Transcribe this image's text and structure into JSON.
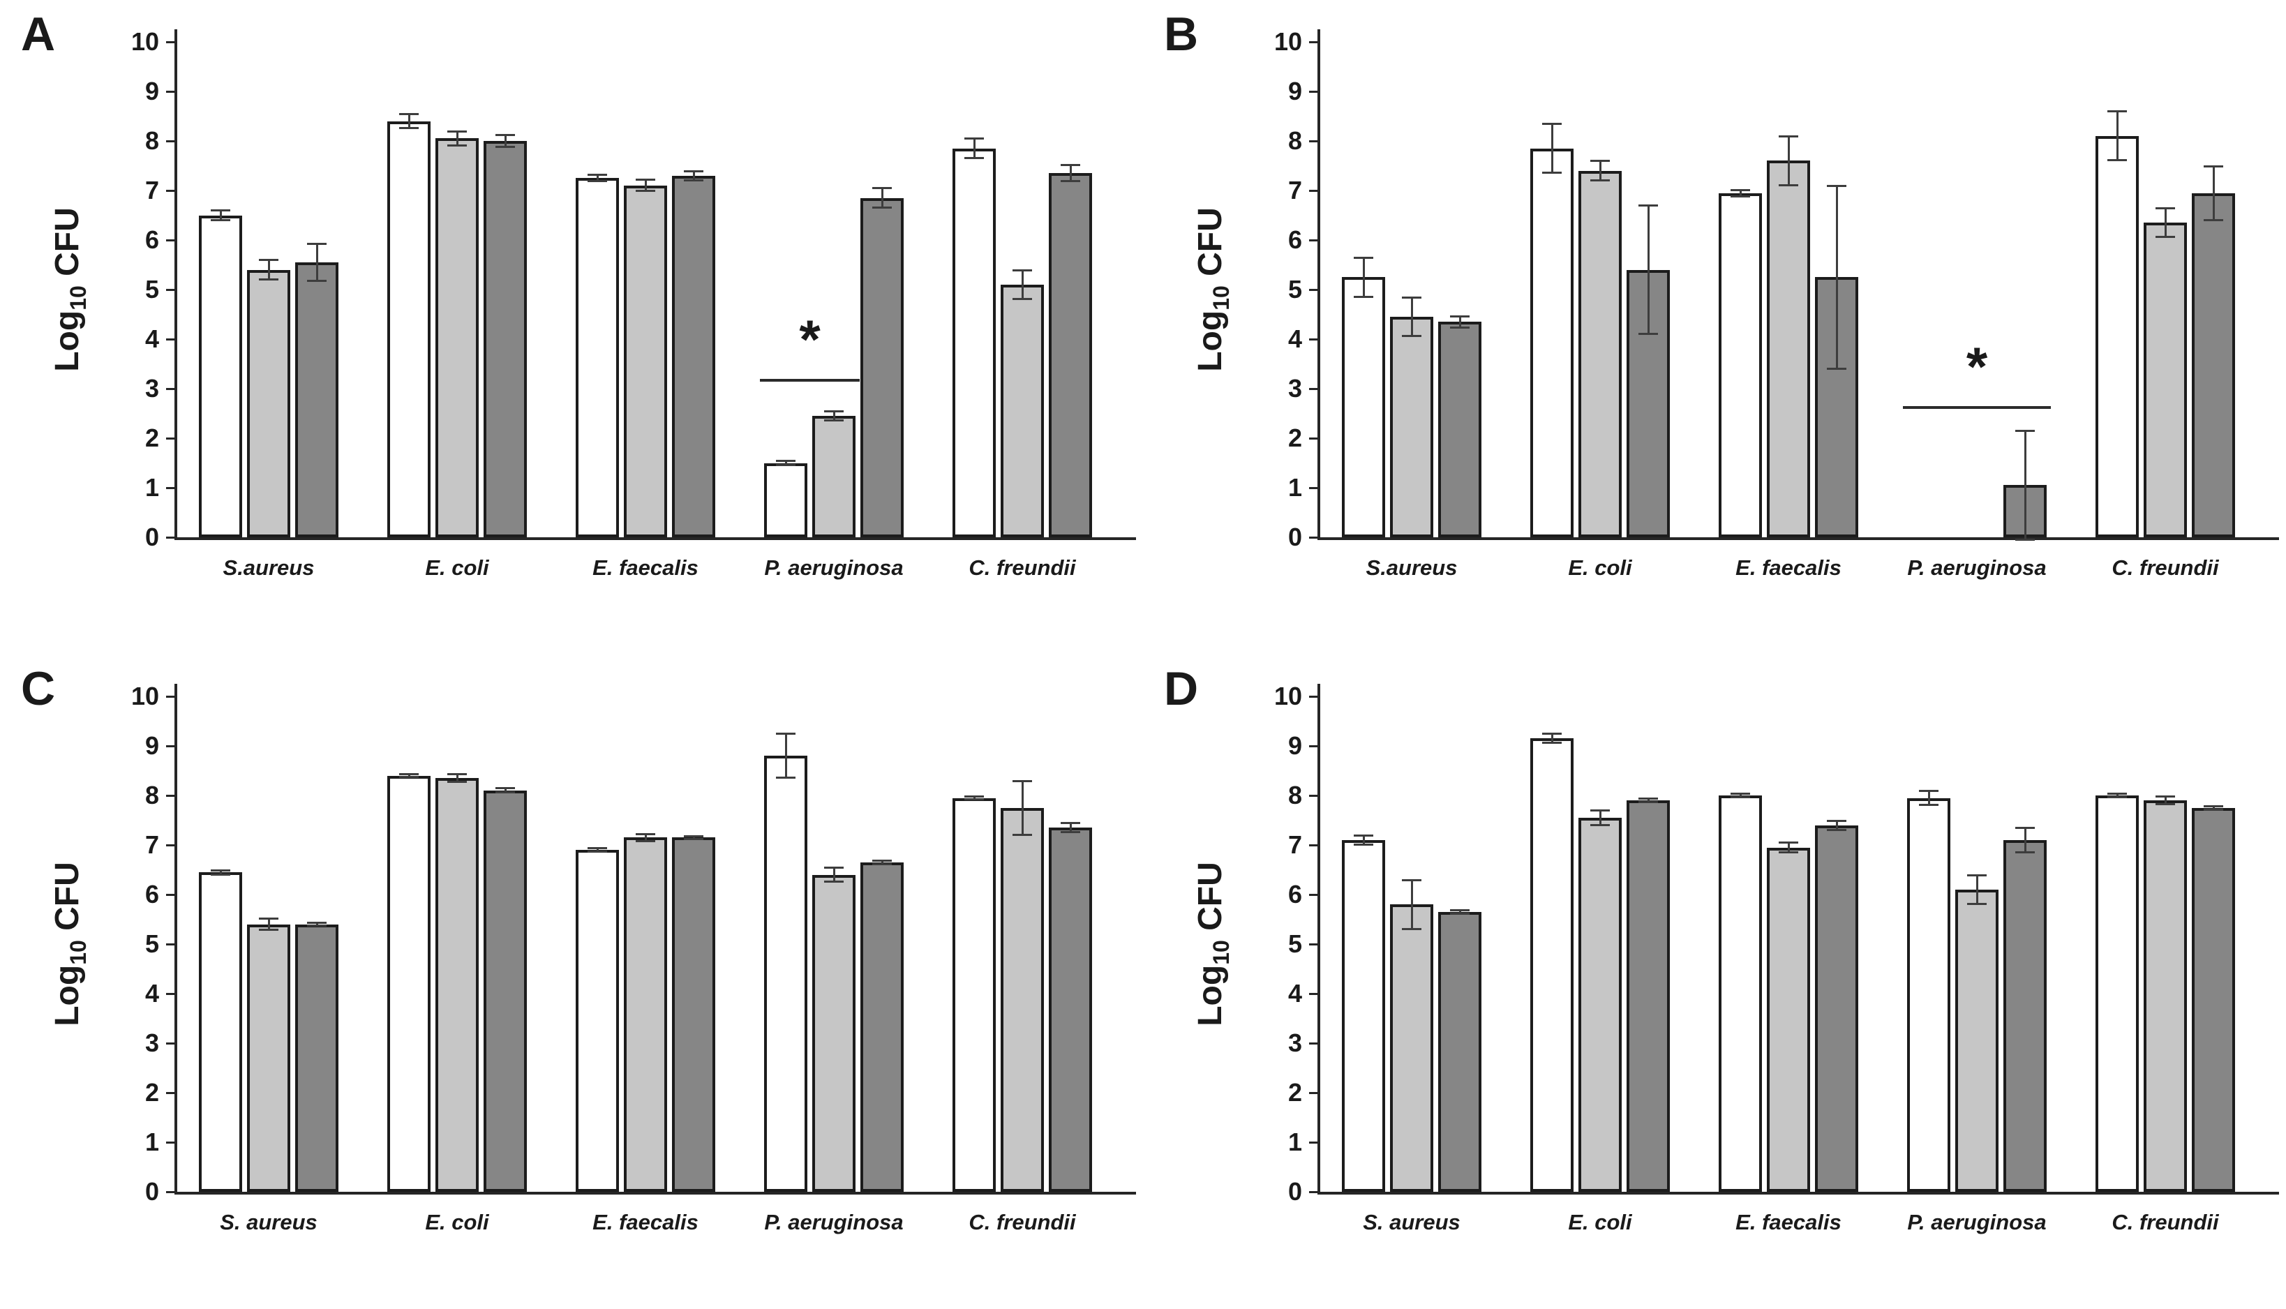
{
  "figure": {
    "background": "#ffffff",
    "bar_fill_colors": {
      "white": "#ffffff",
      "light_gray": "#c6c6c6",
      "dark_gray": "#868686"
    },
    "bar_border_color": "#1c1c1c",
    "error_bar_color": "#3d3d3d",
    "axis_color": "#262626"
  },
  "chart_data": [
    {
      "type": "bar",
      "panel": "A",
      "ylabel": {
        "prefix": "Log",
        "sub": "10",
        "suffix": " CFU"
      },
      "ylim": [
        0,
        10
      ],
      "yticks": [
        0,
        1,
        2,
        3,
        4,
        5,
        6,
        7,
        8,
        9,
        10
      ],
      "grid": false,
      "legend": "none",
      "categories": [
        "S.aureus",
        "E. coli",
        "E. faecalis",
        "P. aeruginosa",
        "C. freundii"
      ],
      "series": [
        {
          "name": "white",
          "values": [
            6.5,
            8.4,
            7.25,
            1.5,
            7.85
          ],
          "errors": [
            0.1,
            0.15,
            0.07,
            0.05,
            0.2
          ]
        },
        {
          "name": "light-gray",
          "values": [
            5.4,
            8.05,
            7.1,
            2.45,
            5.1
          ],
          "errors": [
            0.2,
            0.15,
            0.12,
            0.1,
            0.3
          ]
        },
        {
          "name": "dark-gray",
          "values": [
            5.55,
            8.0,
            7.3,
            6.85,
            7.35
          ],
          "errors": [
            0.38,
            0.12,
            0.1,
            0.2,
            0.17
          ]
        }
      ],
      "significance": {
        "label": "*",
        "category_index": 3,
        "span_bars": [
          0,
          1
        ],
        "line_y": 3.2
      }
    },
    {
      "type": "bar",
      "panel": "B",
      "ylabel": {
        "prefix": "Log",
        "sub": "10",
        "suffix": " CFU"
      },
      "ylim": [
        0,
        10
      ],
      "yticks": [
        0,
        1,
        2,
        3,
        4,
        5,
        6,
        7,
        8,
        9,
        10
      ],
      "grid": false,
      "legend": "none",
      "categories": [
        "S.aureus",
        "E. coli",
        "E. faecalis",
        "P. aeruginosa",
        "C. freundii"
      ],
      "series": [
        {
          "name": "white",
          "values": [
            5.25,
            7.85,
            6.95,
            0,
            8.1
          ],
          "errors": [
            0.4,
            0.5,
            0.07,
            0,
            0.5
          ]
        },
        {
          "name": "light-gray",
          "values": [
            4.45,
            7.4,
            7.6,
            0,
            6.35
          ],
          "errors": [
            0.4,
            0.2,
            0.5,
            0,
            0.3
          ]
        },
        {
          "name": "dark-gray",
          "values": [
            4.35,
            5.4,
            5.25,
            1.05,
            6.95
          ],
          "errors": [
            0.12,
            1.3,
            1.85,
            1.1,
            0.55
          ]
        }
      ],
      "significance": {
        "label": "*",
        "category_index": 3,
        "span_bars": [
          0,
          2
        ],
        "line_y": 2.65
      }
    },
    {
      "type": "bar",
      "panel": "C",
      "ylabel": {
        "prefix": "Log",
        "sub": "10",
        "suffix": " CFU"
      },
      "ylim": [
        0,
        10
      ],
      "yticks": [
        0,
        1,
        2,
        3,
        4,
        5,
        6,
        7,
        8,
        9,
        10
      ],
      "grid": false,
      "legend": "none",
      "categories": [
        "S. aureus",
        "E. coli",
        "E. faecalis",
        "P. aeruginosa",
        "C. freundii"
      ],
      "series": [
        {
          "name": "white",
          "values": [
            6.45,
            8.4,
            6.9,
            8.8,
            7.95
          ],
          "errors": [
            0.05,
            0.04,
            0.04,
            0.45,
            0.04
          ]
        },
        {
          "name": "light-gray",
          "values": [
            5.4,
            8.35,
            7.15,
            6.4,
            7.75
          ],
          "errors": [
            0.12,
            0.08,
            0.08,
            0.15,
            0.55
          ]
        },
        {
          "name": "dark-gray",
          "values": [
            5.4,
            8.1,
            7.15,
            6.65,
            7.35
          ],
          "errors": [
            0.04,
            0.05,
            0.04,
            0.04,
            0.1
          ]
        }
      ],
      "significance": null
    },
    {
      "type": "bar",
      "panel": "D",
      "ylabel": {
        "prefix": "Log",
        "sub": "10",
        "suffix": " CFU"
      },
      "ylim": [
        0,
        10
      ],
      "yticks": [
        0,
        1,
        2,
        3,
        4,
        5,
        6,
        7,
        8,
        9,
        10
      ],
      "grid": false,
      "legend": "none",
      "categories": [
        "S. aureus",
        "E. coli",
        "E. faecalis",
        "P. aeruginosa",
        "C. freundii"
      ],
      "series": [
        {
          "name": "white",
          "values": [
            7.1,
            9.15,
            8.0,
            7.95,
            8.0
          ],
          "errors": [
            0.1,
            0.1,
            0.04,
            0.15,
            0.04
          ]
        },
        {
          "name": "light-gray",
          "values": [
            5.8,
            7.55,
            6.95,
            6.1,
            7.9
          ],
          "errors": [
            0.5,
            0.15,
            0.1,
            0.3,
            0.08
          ]
        },
        {
          "name": "dark-gray",
          "values": [
            5.65,
            7.9,
            7.4,
            7.1,
            7.75
          ],
          "errors": [
            0.04,
            0.04,
            0.1,
            0.25,
            0.04
          ]
        }
      ],
      "significance": null
    }
  ]
}
